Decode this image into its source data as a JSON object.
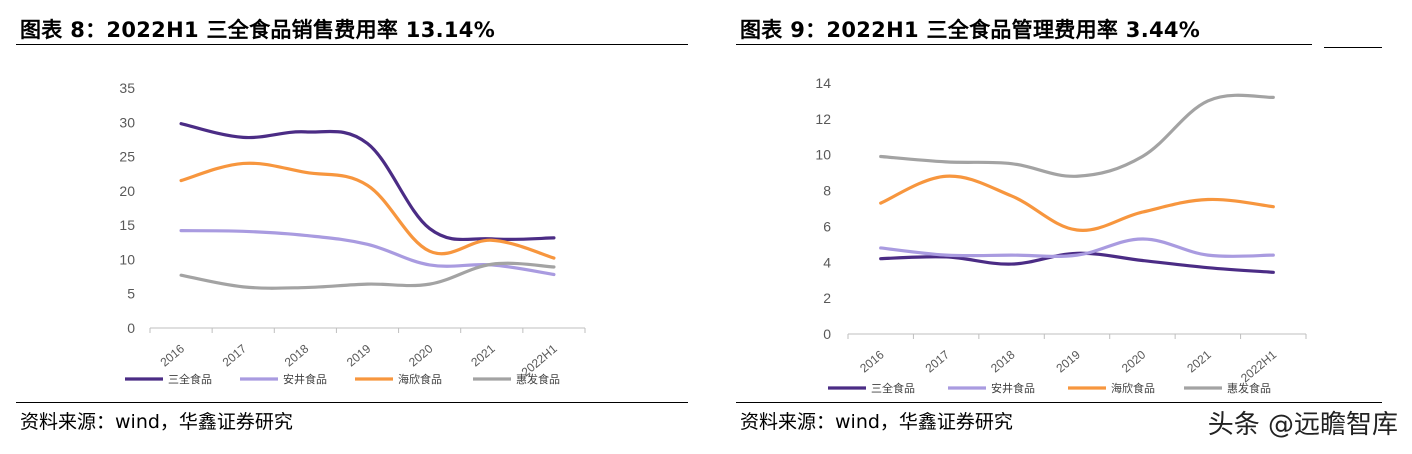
{
  "charts": [
    {
      "title": "图表 8：2022H1 三全食品销售费用率 13.14%",
      "source": "资料来源：wind，华鑫证券研究",
      "chart_data": {
        "type": "line",
        "categories": [
          "2016",
          "2017",
          "2018",
          "2019",
          "2020",
          "2021",
          "2022H1"
        ],
        "ylim": [
          0,
          35
        ],
        "yticks": [
          0,
          5,
          10,
          15,
          20,
          25,
          30,
          35
        ],
        "grid": false,
        "legend_position": "bottom",
        "series": [
          {
            "name": "三全食品",
            "color": "#4b2c85",
            "values": [
              29.8,
              27.8,
              28.6,
              26.9,
              14.5,
              13.0,
              13.14
            ]
          },
          {
            "name": "安井食品",
            "color": "#a99be0",
            "values": [
              14.2,
              14.1,
              13.5,
              12.2,
              9.2,
              9.2,
              7.8
            ]
          },
          {
            "name": "海欣食品",
            "color": "#f7963e",
            "values": [
              21.5,
              24.0,
              22.7,
              20.8,
              11.2,
              12.8,
              10.2
            ]
          },
          {
            "name": "惠发食品",
            "color": "#a3a3a3",
            "values": [
              7.7,
              6.0,
              5.9,
              6.4,
              6.4,
              9.3,
              8.9
            ]
          }
        ]
      }
    },
    {
      "title": "图表 9：2022H1 三全食品管理费用率 3.44%",
      "source": "资料来源：wind，华鑫证券研究",
      "chart_data": {
        "type": "line",
        "categories": [
          "2016",
          "2017",
          "2018",
          "2019",
          "2020",
          "2021",
          "2022H1"
        ],
        "ylim": [
          0,
          14
        ],
        "yticks": [
          0,
          2,
          4,
          6,
          8,
          10,
          12,
          14
        ],
        "grid": false,
        "legend_position": "bottom",
        "series": [
          {
            "name": "三全食品",
            "color": "#4b2c85",
            "values": [
              4.2,
              4.3,
              3.9,
              4.5,
              4.1,
              3.7,
              3.44
            ]
          },
          {
            "name": "安井食品",
            "color": "#a99be0",
            "values": [
              4.8,
              4.4,
              4.4,
              4.4,
              5.3,
              4.4,
              4.4
            ]
          },
          {
            "name": "海欣食品",
            "color": "#f7963e",
            "values": [
              7.3,
              8.8,
              7.7,
              5.8,
              6.8,
              7.5,
              7.1
            ]
          },
          {
            "name": "惠发食品",
            "color": "#a3a3a3",
            "values": [
              9.9,
              9.6,
              9.5,
              8.8,
              9.9,
              13.0,
              13.2
            ]
          }
        ]
      }
    }
  ],
  "watermark": "头条 @远瞻智库"
}
